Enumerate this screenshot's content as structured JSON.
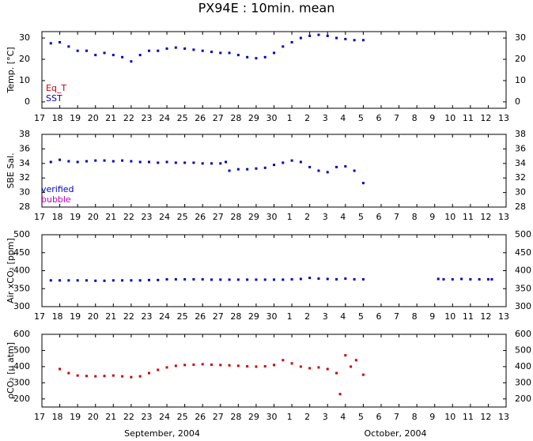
{
  "title": "PX94E : 10min. mean",
  "month_labels": [
    "September, 2004",
    "October, 2004"
  ],
  "chart_data": [
    {
      "type": "scatter",
      "ylabel": "Temp. [°C]",
      "xlim": [
        17,
        43
      ],
      "xticks": [
        17,
        18,
        19,
        20,
        21,
        22,
        23,
        24,
        25,
        26,
        27,
        28,
        29,
        30,
        {
          "value": 31,
          "label": "1"
        },
        {
          "value": 32,
          "label": "2"
        },
        {
          "value": 33,
          "label": "3"
        },
        {
          "value": 34,
          "label": "4"
        },
        {
          "value": 35,
          "label": "5"
        },
        {
          "value": 36,
          "label": "6"
        },
        {
          "value": 37,
          "label": "7"
        },
        {
          "value": 38,
          "label": "8"
        },
        {
          "value": 39,
          "label": "9"
        },
        {
          "value": 40,
          "label": "10"
        },
        {
          "value": 41,
          "label": "11"
        },
        {
          "value": 42,
          "label": "12"
        },
        {
          "value": 43,
          "label": "13"
        }
      ],
      "ylim": [
        -3,
        33
      ],
      "yticks": [
        0,
        10,
        20,
        30
      ],
      "x": [
        17.5,
        18,
        18.5,
        19,
        19.5,
        20,
        20.5,
        21,
        21.5,
        22,
        22.5,
        23,
        23.5,
        24,
        24.5,
        25,
        25.5,
        26,
        26.5,
        27,
        27.5,
        28,
        28.5,
        29,
        29.5,
        30,
        30.5,
        31,
        31.5,
        32,
        32.5,
        33,
        33.5,
        34,
        34.5,
        35
      ],
      "series": [
        {
          "name": "Eq_T",
          "color": "#d00000",
          "values": [
            null,
            null,
            null,
            null,
            null,
            null,
            null,
            null,
            null,
            null,
            null,
            null,
            null,
            null,
            null,
            null,
            null,
            null,
            null,
            null,
            null,
            null,
            null,
            null,
            null,
            null,
            null,
            null,
            null,
            null,
            null,
            null,
            null,
            null,
            null,
            null
          ]
        },
        {
          "name": "SST",
          "color": "#0000c0",
          "values": [
            27.5,
            28,
            26,
            24,
            24,
            22,
            23,
            22,
            21,
            19,
            22,
            24,
            24,
            25,
            25.5,
            25,
            24.5,
            24,
            23.5,
            23,
            23,
            22,
            21,
            20.5,
            21,
            23,
            26,
            28,
            30,
            31,
            31.5,
            31,
            30,
            29.5,
            29,
            29
          ]
        }
      ]
    },
    {
      "type": "scatter",
      "ylabel": "SBE Sal.",
      "xlim": [
        17,
        43
      ],
      "xticks": [
        17,
        18,
        19,
        20,
        21,
        22,
        23,
        24,
        25,
        26,
        27,
        28,
        29,
        30,
        {
          "value": 31,
          "label": "1"
        },
        {
          "value": 32,
          "label": "2"
        },
        {
          "value": 33,
          "label": "3"
        },
        {
          "value": 34,
          "label": "4"
        },
        {
          "value": 35,
          "label": "5"
        },
        {
          "value": 36,
          "label": "6"
        },
        {
          "value": 37,
          "label": "7"
        },
        {
          "value": 38,
          "label": "8"
        },
        {
          "value": 39,
          "label": "9"
        },
        {
          "value": 40,
          "label": "10"
        },
        {
          "value": 41,
          "label": "11"
        },
        {
          "value": 42,
          "label": "12"
        },
        {
          "value": 43,
          "label": "13"
        }
      ],
      "ylim": [
        28,
        38
      ],
      "yticks": [
        28,
        30,
        32,
        34,
        36,
        38
      ],
      "x": [
        17.5,
        18,
        18.5,
        19,
        19.5,
        20,
        20.5,
        21,
        21.5,
        22,
        22.5,
        23,
        23.5,
        24,
        24.5,
        25,
        25.5,
        26,
        26.5,
        27,
        27.3,
        27.5,
        28,
        28.5,
        29,
        29.5,
        30,
        30.5,
        31,
        31.5,
        32,
        32.5,
        33,
        33.5,
        34,
        34.5,
        35
      ],
      "series": [
        {
          "name": "verified",
          "color": "#0000c0",
          "values": [
            34.2,
            34.5,
            34.3,
            34.2,
            34.3,
            34.4,
            34.4,
            34.3,
            34.4,
            34.3,
            34.2,
            34.2,
            34.1,
            34.2,
            34.1,
            34.1,
            34.1,
            34.0,
            34.0,
            34.0,
            34.2,
            33.0,
            33.2,
            33.2,
            33.3,
            33.4,
            33.8,
            34.1,
            34.4,
            34.2,
            33.5,
            33.0,
            32.8,
            33.5,
            33.6,
            33.0,
            31.3
          ]
        },
        {
          "name": "bubble",
          "color": "#c000c0",
          "values": [
            null,
            null,
            null,
            null,
            null,
            null,
            null,
            null,
            null,
            null,
            null,
            null,
            null,
            null,
            null,
            null,
            null,
            null,
            null,
            null,
            null,
            null,
            null,
            null,
            null,
            null,
            null,
            null,
            null,
            null,
            null,
            null,
            null,
            null,
            null,
            null,
            null
          ]
        }
      ]
    },
    {
      "type": "scatter",
      "ylabel": "Air xCO₂ [ppm]",
      "xlim": [
        17,
        43
      ],
      "xticks": [
        17,
        18,
        19,
        20,
        21,
        22,
        23,
        24,
        25,
        26,
        27,
        28,
        29,
        30,
        {
          "value": 31,
          "label": "1"
        },
        {
          "value": 32,
          "label": "2"
        },
        {
          "value": 33,
          "label": "3"
        },
        {
          "value": 34,
          "label": "4"
        },
        {
          "value": 35,
          "label": "5"
        },
        {
          "value": 36,
          "label": "6"
        },
        {
          "value": 37,
          "label": "7"
        },
        {
          "value": 38,
          "label": "8"
        },
        {
          "value": 39,
          "label": "9"
        },
        {
          "value": 40,
          "label": "10"
        },
        {
          "value": 41,
          "label": "11"
        },
        {
          "value": 42,
          "label": "12"
        },
        {
          "value": 43,
          "label": "13"
        }
      ],
      "ylim": [
        300,
        500
      ],
      "yticks": [
        300,
        350,
        400,
        450,
        500
      ],
      "x": [
        17.5,
        18,
        18.5,
        19,
        19.5,
        20,
        20.5,
        21,
        21.5,
        22,
        22.5,
        23,
        23.5,
        24,
        24.5,
        25,
        25.5,
        26,
        26.5,
        27,
        27.5,
        28,
        28.5,
        29,
        29.5,
        30,
        30.5,
        31,
        31.5,
        32,
        32.5,
        33,
        33.5,
        34,
        34.5,
        35,
        39.2,
        39.5,
        40,
        40.5,
        41,
        41.5,
        42,
        42.2
      ],
      "series": [
        {
          "color": "#0000c0",
          "values": [
            373,
            373,
            373,
            373,
            373,
            372,
            372,
            373,
            373,
            373,
            373,
            374,
            374,
            376,
            376,
            376,
            376,
            376,
            375,
            375,
            375,
            375,
            375,
            375,
            375,
            375,
            375,
            376,
            377,
            380,
            378,
            377,
            376,
            378,
            376,
            376,
            377,
            376,
            376,
            377,
            376,
            376,
            376,
            376
          ]
        }
      ]
    },
    {
      "type": "scatter",
      "ylabel": "ρCO₂ [μ atm]",
      "xlim": [
        17,
        43
      ],
      "xticks": [
        17,
        18,
        19,
        20,
        21,
        22,
        23,
        24,
        25,
        26,
        27,
        28,
        29,
        30,
        {
          "value": 31,
          "label": "1"
        },
        {
          "value": 32,
          "label": "2"
        },
        {
          "value": 33,
          "label": "3"
        },
        {
          "value": 34,
          "label": "4"
        },
        {
          "value": 35,
          "label": "5"
        },
        {
          "value": 36,
          "label": "6"
        },
        {
          "value": 37,
          "label": "7"
        },
        {
          "value": 38,
          "label": "8"
        },
        {
          "value": 39,
          "label": "9"
        },
        {
          "value": 40,
          "label": "10"
        },
        {
          "value": 41,
          "label": "11"
        },
        {
          "value": 42,
          "label": "12"
        },
        {
          "value": 43,
          "label": "13"
        }
      ],
      "ylim": [
        150,
        600
      ],
      "yticks": [
        200,
        300,
        400,
        500,
        600
      ],
      "x": [
        18,
        18.5,
        19,
        19.5,
        20,
        20.5,
        21,
        21.5,
        22,
        22.5,
        23,
        23.5,
        24,
        24.5,
        25,
        25.5,
        26,
        26.5,
        27,
        27.5,
        28,
        28.5,
        29,
        29.5,
        30,
        30.5,
        31,
        31.5,
        32,
        32.5,
        33,
        33.5,
        33.7,
        34,
        34.3,
        34.6,
        35
      ],
      "series": [
        {
          "color": "#d00000",
          "values": [
            385,
            360,
            345,
            342,
            340,
            342,
            345,
            340,
            335,
            340,
            360,
            380,
            395,
            405,
            410,
            412,
            415,
            412,
            410,
            408,
            405,
            402,
            400,
            402,
            410,
            440,
            420,
            400,
            390,
            395,
            385,
            360,
            230,
            470,
            400,
            440,
            350
          ]
        }
      ]
    }
  ]
}
